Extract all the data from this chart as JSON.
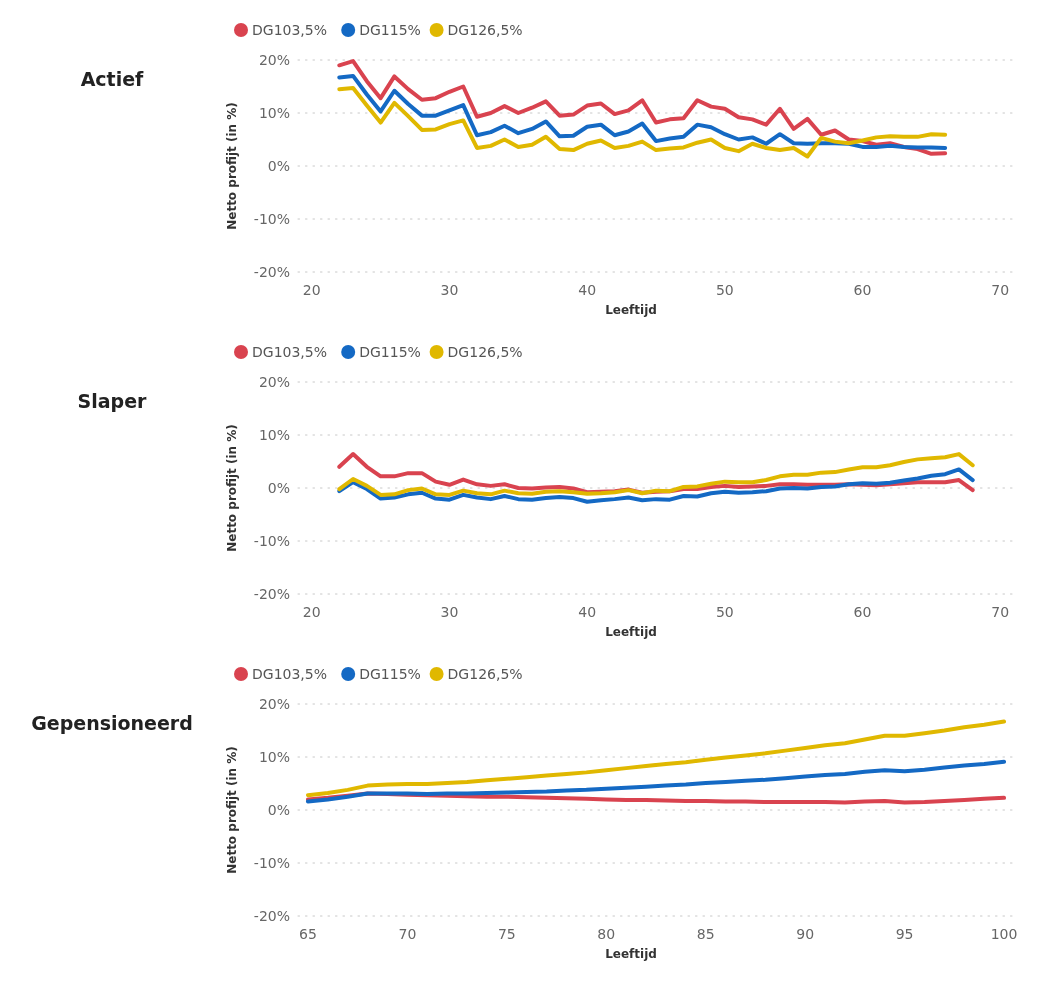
{
  "chart_data": [
    {
      "type": "line",
      "title": "Actief",
      "xlabel": "Leeftijd",
      "ylabel": "Netto profijt (in %)",
      "legend": "top left",
      "grid": "y",
      "xlim": [
        19,
        71
      ],
      "xticks": [
        20,
        30,
        40,
        50,
        60,
        70
      ],
      "ylim": [
        -20,
        20
      ],
      "yticks": [
        {
          "value": -20,
          "label": "-20%"
        },
        {
          "value": -10,
          "label": "-10%"
        },
        {
          "value": 0,
          "label": "0%"
        },
        {
          "value": 10,
          "label": "10%"
        },
        {
          "value": 20,
          "label": "20%"
        }
      ],
      "x": [
        22,
        23,
        24,
        25,
        26,
        27,
        28,
        29,
        30,
        31,
        32,
        33,
        34,
        35,
        36,
        37,
        38,
        39,
        40,
        41,
        42,
        43,
        44,
        45,
        46,
        47,
        48,
        49,
        50,
        51,
        52,
        53,
        54,
        55,
        56,
        57,
        58,
        59,
        60,
        61,
        62,
        63,
        64,
        65,
        66
      ],
      "series": [
        {
          "name": "DG103,5%",
          "color": "#d9434f",
          "values": [
            19,
            19.8,
            16,
            12.8,
            16.9,
            14.5,
            12.5,
            12.8,
            14,
            15,
            9.3,
            10,
            11.3,
            10,
            11,
            12.2,
            9.5,
            9.7,
            11.4,
            11.8,
            9.8,
            10.5,
            12.4,
            8.2,
            8.8,
            9,
            12.4,
            11.2,
            10.8,
            9.2,
            8.8,
            7.8,
            10.8,
            7,
            8.9,
            5.9,
            6.7,
            5,
            4.7,
            4,
            4.3,
            3.6,
            3.2,
            2.3,
            2.4
          ]
        },
        {
          "name": "DG115%",
          "color": "#1469c4",
          "values": [
            16.7,
            17,
            13.5,
            10.3,
            14.2,
            11.7,
            9.5,
            9.5,
            10.5,
            11.5,
            5.8,
            6.4,
            7.6,
            6.2,
            7,
            8.4,
            5.6,
            5.7,
            7.4,
            7.8,
            5.8,
            6.5,
            8,
            4.7,
            5.2,
            5.5,
            7.8,
            7.3,
            6,
            5,
            5.4,
            4.2,
            6,
            4.3,
            4.2,
            4.3,
            4.3,
            4.2,
            3.6,
            3.6,
            3.8,
            3.6,
            3.5,
            3.5,
            3.4
          ]
        },
        {
          "name": "DG126,5%",
          "color": "#e0b800",
          "values": [
            14.5,
            14.7,
            11.4,
            8.2,
            11.9,
            9.4,
            6.8,
            6.9,
            7.9,
            8.6,
            3.4,
            3.8,
            5,
            3.6,
            4,
            5.5,
            3.2,
            3,
            4.2,
            4.8,
            3.4,
            3.8,
            4.6,
            3,
            3.3,
            3.5,
            4.4,
            5,
            3.4,
            2.8,
            4.2,
            3.4,
            3,
            3.4,
            1.8,
            5.3,
            4.6,
            4.3,
            4.8,
            5.4,
            5.6,
            5.5,
            5.5,
            6,
            5.9
          ]
        }
      ]
    },
    {
      "type": "line",
      "title": "Slaper",
      "xlabel": "Leeftijd",
      "ylabel": "Netto profijt (in %)",
      "legend": "top left",
      "grid": "y",
      "xlim": [
        19,
        71
      ],
      "xticks": [
        20,
        30,
        40,
        50,
        60,
        70
      ],
      "ylim": [
        -20,
        20
      ],
      "yticks": [
        {
          "value": -20,
          "label": "-20%"
        },
        {
          "value": -10,
          "label": "-10%"
        },
        {
          "value": 0,
          "label": "0%"
        },
        {
          "value": 10,
          "label": "10%"
        },
        {
          "value": 20,
          "label": "20%"
        }
      ],
      "x": [
        22,
        23,
        24,
        25,
        26,
        27,
        28,
        29,
        30,
        31,
        32,
        33,
        34,
        35,
        36,
        37,
        38,
        39,
        40,
        41,
        42,
        43,
        44,
        45,
        46,
        47,
        48,
        49,
        50,
        51,
        52,
        53,
        54,
        55,
        56,
        57,
        58,
        59,
        60,
        61,
        62,
        63,
        64,
        65,
        66,
        67,
        68
      ],
      "series": [
        {
          "name": "DG103,5%",
          "color": "#d9434f",
          "values": [
            4,
            6.4,
            4,
            2.2,
            2.2,
            2.8,
            2.8,
            1.2,
            0.6,
            1.6,
            0.7,
            0.4,
            0.7,
            0,
            -0.1,
            0.1,
            0.2,
            -0.1,
            -0.8,
            -0.7,
            -0.6,
            -0.3,
            -0.9,
            -0.7,
            -0.6,
            -0.2,
            -0.2,
            0.2,
            0.4,
            0.2,
            0.3,
            0.4,
            0.7,
            0.7,
            0.6,
            0.6,
            0.6,
            0.7,
            0.6,
            0.5,
            0.7,
            0.9,
            1.1,
            1.1,
            1.1,
            1.5,
            -0.4
          ]
        },
        {
          "name": "DG115%",
          "color": "#1469c4",
          "values": [
            -0.6,
            1.1,
            -0.2,
            -2,
            -1.8,
            -1.2,
            -0.9,
            -2,
            -2.2,
            -1.3,
            -1.8,
            -2.1,
            -1.5,
            -2.1,
            -2.2,
            -1.9,
            -1.7,
            -1.9,
            -2.6,
            -2.3,
            -2.1,
            -1.8,
            -2.3,
            -2.1,
            -2.2,
            -1.5,
            -1.6,
            -1,
            -0.7,
            -0.9,
            -0.8,
            -0.6,
            -0.1,
            0,
            -0.1,
            0.2,
            0.3,
            0.7,
            0.9,
            0.8,
            1,
            1.4,
            1.8,
            2.3,
            2.6,
            3.5,
            1.5
          ]
        },
        {
          "name": "DG126,5%",
          "color": "#e0b800",
          "values": [
            -0.2,
            1.7,
            0.4,
            -1.3,
            -1.2,
            -0.4,
            -0.1,
            -1.2,
            -1.3,
            -0.5,
            -1,
            -1.2,
            -0.5,
            -1,
            -1.1,
            -0.7,
            -0.6,
            -0.8,
            -1.1,
            -1,
            -0.8,
            -0.4,
            -1,
            -0.5,
            -0.6,
            0.2,
            0.3,
            0.8,
            1.2,
            1.1,
            1.1,
            1.5,
            2.2,
            2.5,
            2.5,
            2.9,
            3,
            3.5,
            3.9,
            3.9,
            4.3,
            4.9,
            5.4,
            5.6,
            5.8,
            6.4,
            4.3
          ]
        }
      ]
    },
    {
      "type": "line",
      "title": "Gepensioneerd",
      "xlabel": "Leeftijd",
      "ylabel": "Netto profijt (in %)",
      "legend": "top left",
      "grid": "y",
      "xlim": [
        64.5,
        100.5
      ],
      "xticks": [
        65,
        70,
        75,
        80,
        85,
        90,
        95,
        100
      ],
      "ylim": [
        -20,
        20
      ],
      "yticks": [
        {
          "value": -20,
          "label": "-20%"
        },
        {
          "value": -10,
          "label": "-10%"
        },
        {
          "value": 0,
          "label": "0%"
        },
        {
          "value": 10,
          "label": "10%"
        },
        {
          "value": 20,
          "label": "20%"
        }
      ],
      "x": [
        65,
        66,
        67,
        68,
        69,
        70,
        71,
        72,
        73,
        74,
        75,
        76,
        77,
        78,
        79,
        80,
        81,
        82,
        83,
        84,
        85,
        86,
        87,
        88,
        89,
        90,
        91,
        92,
        93,
        94,
        95,
        96,
        97,
        98,
        99,
        100
      ],
      "series": [
        {
          "name": "DG103,5%",
          "color": "#d9434f",
          "values": [
            2,
            2.3,
            2.7,
            3.1,
            3,
            2.9,
            2.8,
            2.7,
            2.6,
            2.5,
            2.5,
            2.4,
            2.3,
            2.2,
            2.1,
            2,
            1.9,
            1.9,
            1.8,
            1.7,
            1.7,
            1.6,
            1.6,
            1.5,
            1.5,
            1.5,
            1.5,
            1.4,
            1.6,
            1.7,
            1.4,
            1.5,
            1.7,
            1.9,
            2.1,
            2.3
          ]
        },
        {
          "name": "DG115%",
          "color": "#1469c4",
          "values": [
            1.6,
            2,
            2.5,
            3.1,
            3.1,
            3.1,
            3,
            3.1,
            3.1,
            3.2,
            3.3,
            3.4,
            3.5,
            3.7,
            3.8,
            4,
            4.2,
            4.4,
            4.6,
            4.8,
            5.1,
            5.3,
            5.5,
            5.7,
            6,
            6.3,
            6.6,
            6.8,
            7.2,
            7.5,
            7.3,
            7.6,
            8,
            8.4,
            8.7,
            9.1
          ]
        },
        {
          "name": "DG126,5%",
          "color": "#e0b800",
          "values": [
            2.8,
            3.2,
            3.8,
            4.6,
            4.8,
            4.9,
            4.9,
            5.1,
            5.3,
            5.6,
            5.9,
            6.2,
            6.5,
            6.8,
            7.1,
            7.5,
            7.9,
            8.3,
            8.7,
            9,
            9.5,
            9.9,
            10.3,
            10.7,
            11.2,
            11.7,
            12.2,
            12.6,
            13.3,
            14,
            14,
            14.5,
            15,
            15.6,
            16.1,
            16.7
          ]
        }
      ]
    }
  ]
}
